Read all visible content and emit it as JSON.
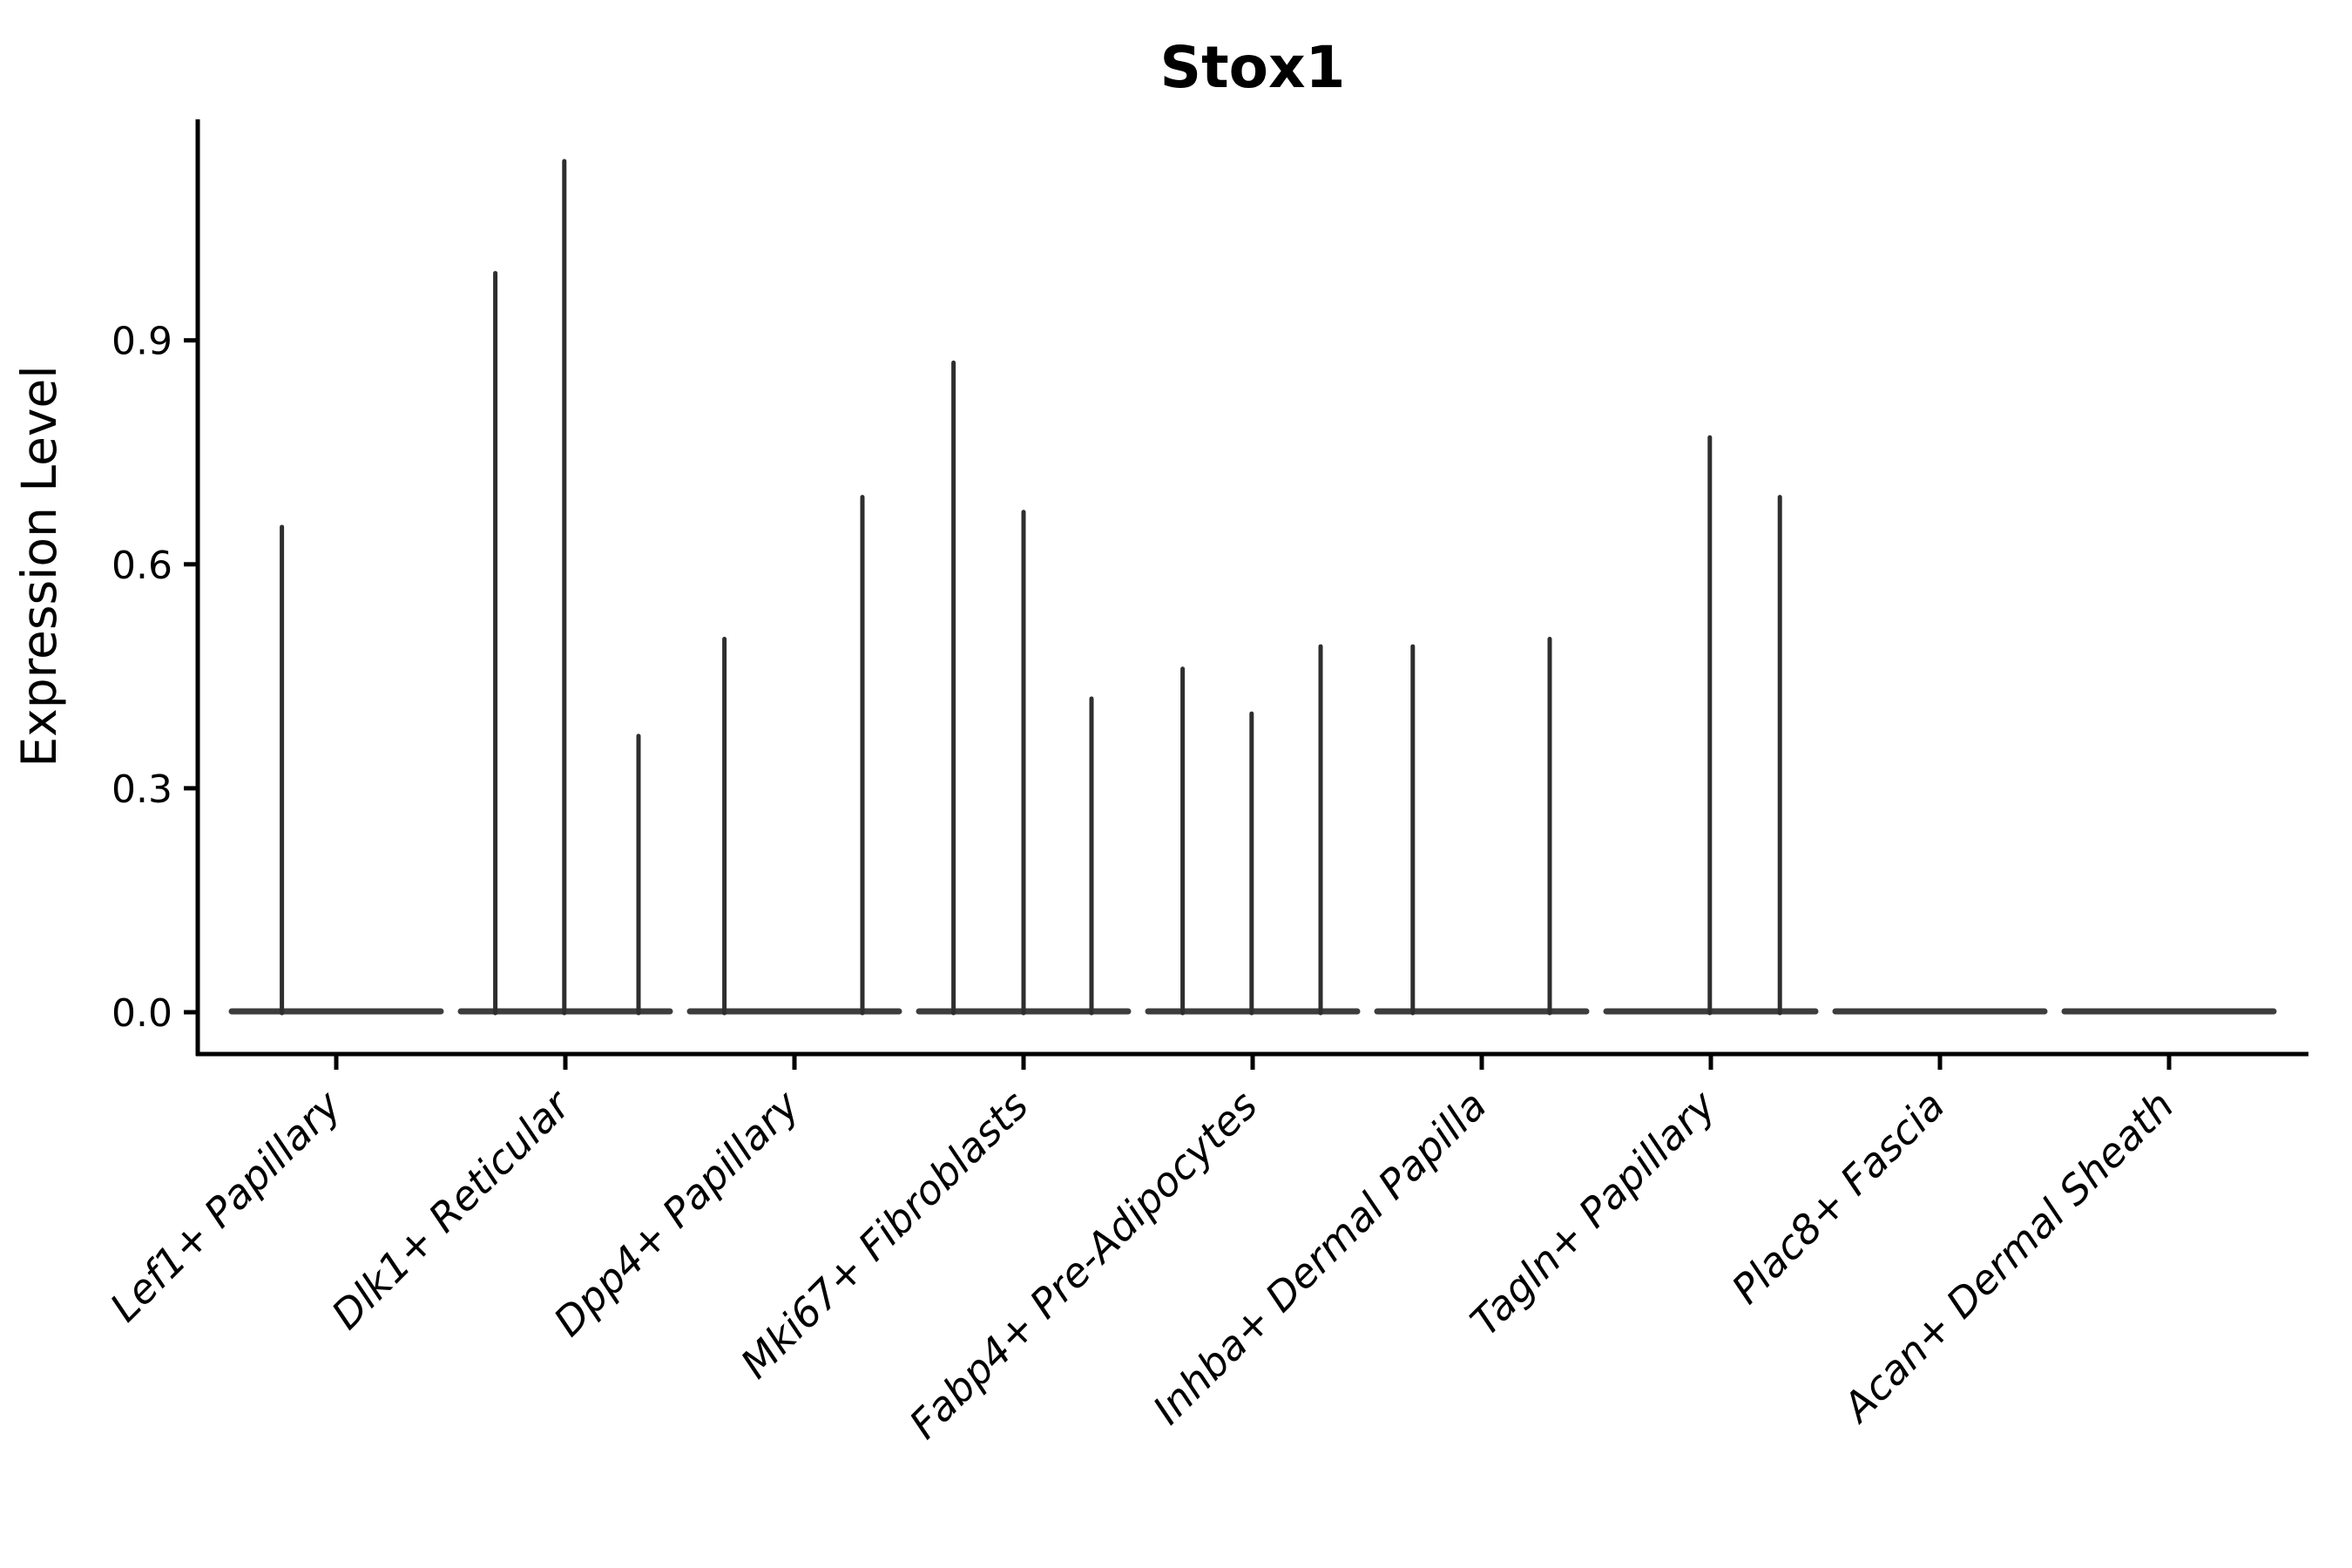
{
  "figure": {
    "title": "Stox1",
    "ylabel": "Expression Level"
  },
  "chart_data": {
    "type": "violin",
    "title": "Stox1",
    "xlabel": "",
    "ylabel": "Expression Level",
    "ylim": [
      0,
      1.2
    ],
    "ytick_values": [
      0.0,
      0.3,
      0.6,
      0.9
    ],
    "ytick_labels": [
      "0.0",
      "0.3",
      "0.6",
      "0.9"
    ],
    "grid": false,
    "legend": "none",
    "categories": [
      "Lef1+ Papillary",
      "Dlk1+ Reticular",
      "Dpp4+ Papillary",
      "Mki67+ Fibroblasts",
      "Fabp4+ Pre-Adipocytes",
      "Inhba+ Dermal Papilla",
      "Tagln+ Papillary",
      "Plac8+ Fascia",
      "Acan+ Dermal Sheath"
    ],
    "description": "Each cell type shows a flat violin body at expression 0 with thin vertical spikes rising to the maximum expression of each sub-violin; offset is the spike position within the category slot (-1 = left edge, +1 = right edge of the violin body).",
    "violins": [
      {
        "label": "Lef1+ Papillary",
        "body_value": 0,
        "spikes": [
          {
            "offset": -0.52,
            "max": 0.65
          }
        ]
      },
      {
        "label": "Dlk1+ Reticular",
        "body_value": 0,
        "spikes": [
          {
            "offset": -0.67,
            "max": 0.99
          },
          {
            "offset": -0.01,
            "max": 1.14
          },
          {
            "offset": 0.7,
            "max": 0.37
          }
        ]
      },
      {
        "label": "Dpp4+ Papillary",
        "body_value": 0,
        "spikes": [
          {
            "offset": -0.67,
            "max": 0.5
          },
          {
            "offset": 0.65,
            "max": 0.69
          }
        ]
      },
      {
        "label": "Mki67+ Fibroblasts",
        "body_value": 0,
        "spikes": [
          {
            "offset": -0.67,
            "max": 0.87
          },
          {
            "offset": 0.0,
            "max": 0.67
          },
          {
            "offset": 0.65,
            "max": 0.42
          }
        ]
      },
      {
        "label": "Fabp4+ Pre-Adipocytes",
        "body_value": 0,
        "spikes": [
          {
            "offset": -0.67,
            "max": 0.46
          },
          {
            "offset": -0.01,
            "max": 0.4
          },
          {
            "offset": 0.65,
            "max": 0.49
          }
        ]
      },
      {
        "label": "Inhba+ Dermal Papilla",
        "body_value": 0,
        "spikes": [
          {
            "offset": -0.66,
            "max": 0.49
          },
          {
            "offset": 0.65,
            "max": 0.5
          }
        ]
      },
      {
        "label": "Tagln+ Papillary",
        "body_value": 0,
        "spikes": [
          {
            "offset": -0.01,
            "max": 0.77
          },
          {
            "offset": 0.66,
            "max": 0.69
          }
        ]
      },
      {
        "label": "Plac8+ Fascia",
        "body_value": 0,
        "spikes": []
      },
      {
        "label": "Acan+ Dermal Sheath",
        "body_value": 0,
        "spikes": []
      }
    ],
    "colors": {
      "spike": "#2e2e2e",
      "violin_body": "#3d3d3d",
      "axis": "#000000",
      "background": "#ffffff"
    }
  }
}
